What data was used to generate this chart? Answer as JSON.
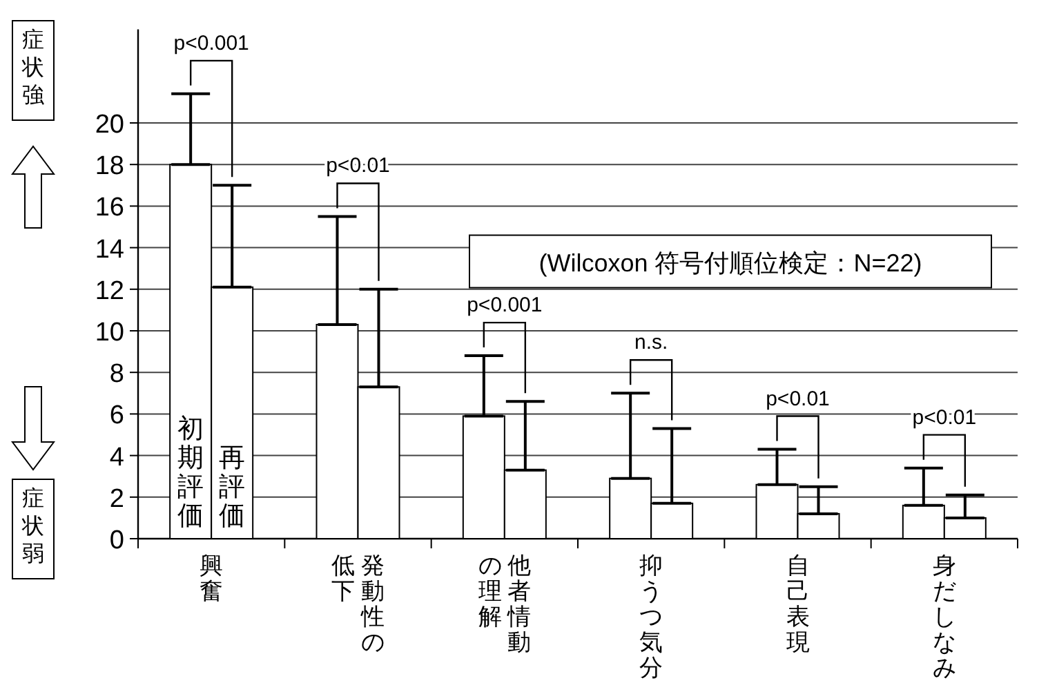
{
  "chart_data": {
    "type": "bar",
    "categories": [
      "興奮",
      "発動性の低下",
      "他者情動の理解",
      "抑うつ気分",
      "自己表現",
      "身だしなみ"
    ],
    "series": [
      {
        "name": "初期評価",
        "color": "#ffffff",
        "values": [
          18.0,
          10.3,
          5.9,
          2.9,
          2.6,
          1.6
        ],
        "errors": [
          [
            18.0,
            21.4
          ],
          [
            10.3,
            15.5
          ],
          [
            5.9,
            8.8
          ],
          [
            2.9,
            7.0
          ],
          [
            2.6,
            4.3
          ],
          [
            1.6,
            3.4
          ]
        ]
      },
      {
        "name": "再評価",
        "color": "#ffffff",
        "values": [
          12.1,
          7.3,
          3.3,
          1.7,
          1.2,
          1.0
        ],
        "errors": [
          [
            12.1,
            17.0
          ],
          [
            7.3,
            12.0
          ],
          [
            3.3,
            6.6
          ],
          [
            1.7,
            5.3
          ],
          [
            1.2,
            2.5
          ],
          [
            1.0,
            2.1
          ]
        ]
      }
    ],
    "ylim": [
      0,
      24.5
    ],
    "yticks": [
      0,
      2,
      4,
      6,
      8,
      10,
      12,
      14,
      16,
      18,
      20
    ],
    "grid": "y",
    "annotations": [
      "p<0.001",
      "p<0.01",
      "p<0.001",
      "n.s.",
      "p<0.01",
      "p<0.01",
      "(Wilcoxon 符号付順位検定：N=22)",
      "症状強",
      "症状弱"
    ]
  }
}
